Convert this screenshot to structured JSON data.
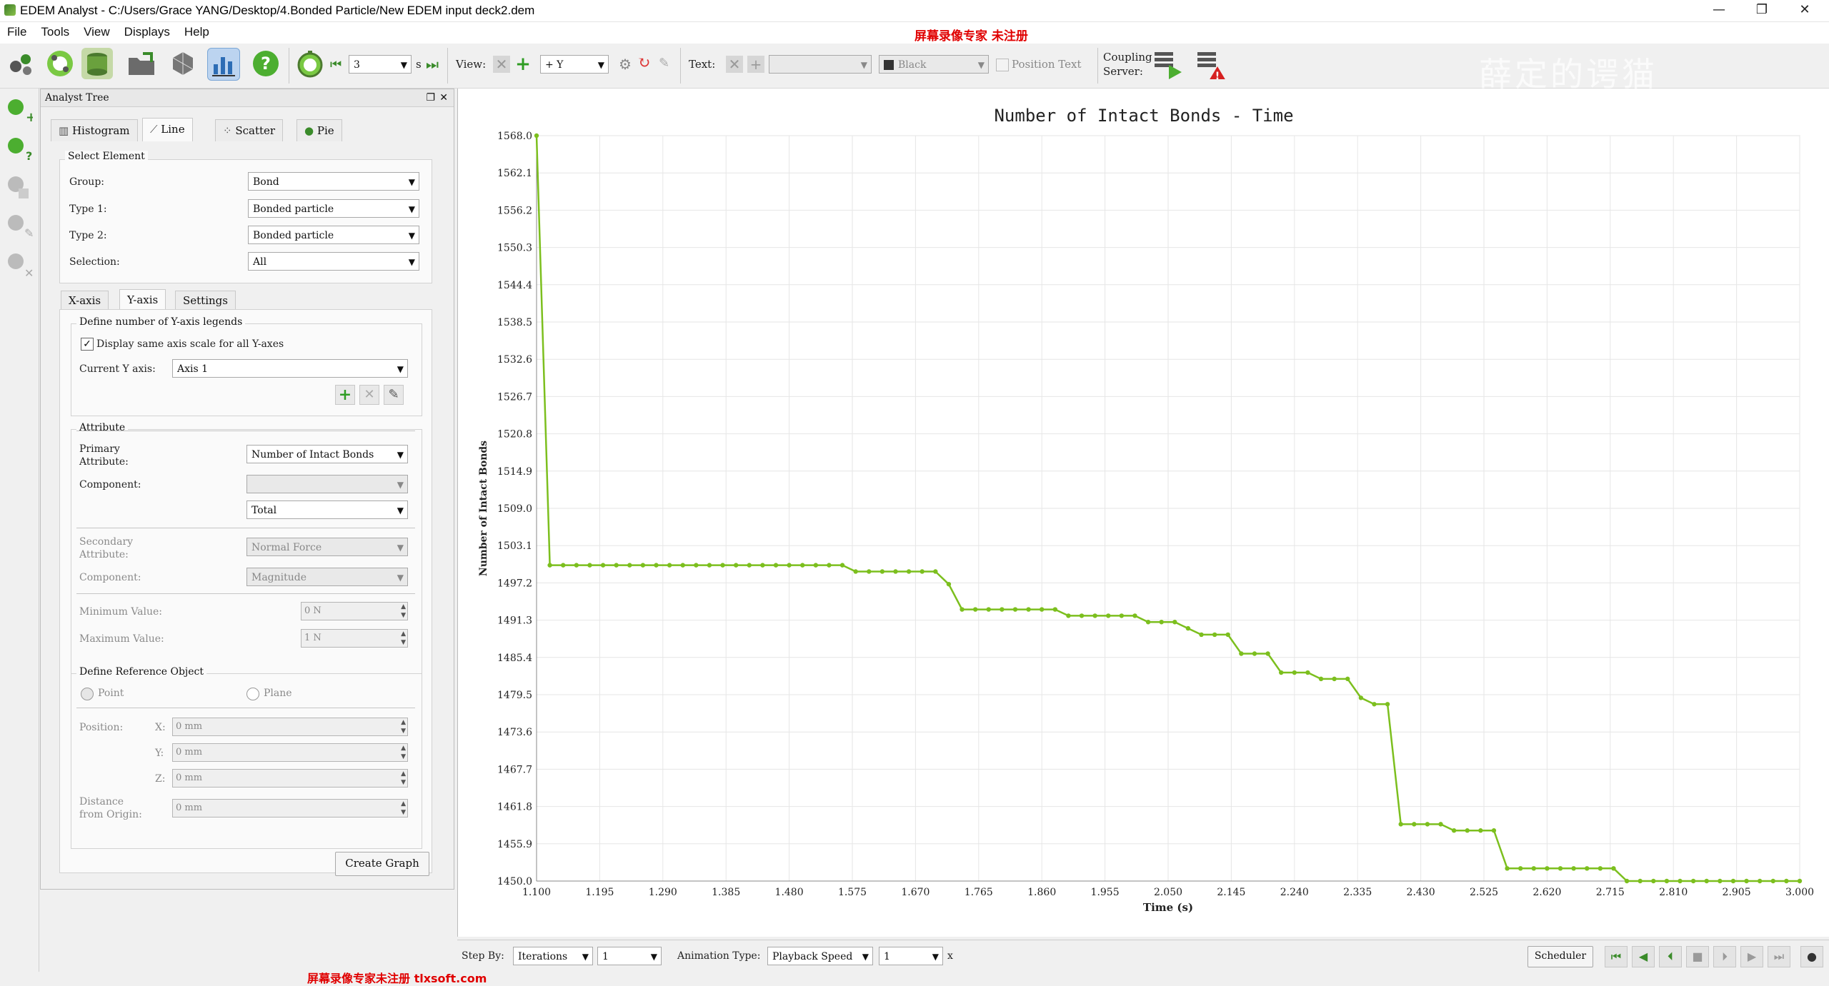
{
  "window": {
    "title": "EDEM Analyst - C:/Users/Grace YANG/Desktop/4.Bonded Particle/New EDEM input deck2.dem",
    "watermark_top": "屏幕录像专家 未注册",
    "watermark_bottom": "屏幕录像专家未注册 tlxsoft.com",
    "watermark_right": "薛定的谔猫",
    "minimize": "—",
    "restore": "❐",
    "close": "✕"
  },
  "menu": [
    "File",
    "Tools",
    "View",
    "Displays",
    "Help"
  ],
  "toolbar": {
    "iterations_value": "3",
    "iterations_unit": "s",
    "view_label": "View:",
    "view_axis": "+ Y",
    "text_label": "Text:",
    "color_value": "Black",
    "position_text_label": "Position Text",
    "coupling_label_1": "Coupling",
    "coupling_label_2": "Server:"
  },
  "panel": {
    "title": "Analyst Tree",
    "tabs": [
      "Histogram",
      "Line",
      "Scatter",
      "Pie"
    ],
    "select_element": {
      "title": "Select Element",
      "group_label": "Group:",
      "group_value": "Bond",
      "type1_label": "Type 1:",
      "type1_value": "Bonded particle",
      "type2_label": "Type 2:",
      "type2_value": "Bonded particle",
      "selection_label": "Selection:",
      "selection_value": "All"
    },
    "subtabs": [
      "X-axis",
      "Y-axis",
      "Settings"
    ],
    "yaxis": {
      "legend_group": "Define number of Y-axis legends",
      "same_scale_label": "Display same axis scale for all Y-axes",
      "current_axis_label": "Current Y axis:",
      "current_axis_value": "Axis 1"
    },
    "attribute": {
      "title": "Attribute",
      "primary_label_1": "Primary",
      "primary_label_2": "Attribute:",
      "primary_value": "Number of Intact Bonds",
      "component_label": "Component:",
      "component_value": "",
      "total_value": "Total",
      "secondary_label_1": "Secondary",
      "secondary_label_2": "Attribute:",
      "secondary_value": "Normal Force",
      "component2_label": "Component:",
      "component2_value": "Magnitude",
      "min_label": "Minimum Value:",
      "min_value": "0 N",
      "max_label": "Maximum Value:",
      "max_value": "1 N"
    },
    "reference": {
      "title": "Define Reference Object",
      "point_label": "Point",
      "plane_label": "Plane",
      "position_label": "Position:",
      "x_label": "X:",
      "y_label": "Y:",
      "z_label": "Z:",
      "x_value": "0 mm",
      "y_value": "0 mm",
      "z_value": "0 mm",
      "distance_label_1": "Distance",
      "distance_label_2": "from Origin:",
      "distance_value": "0 mm"
    },
    "create_graph": "Create Graph"
  },
  "bottom": {
    "step_by_label": "Step By:",
    "step_by_value": "Iterations",
    "step_value": "1",
    "animation_label": "Animation Type:",
    "animation_value": "Playback Speed",
    "speed_value": "1",
    "speed_unit": "x",
    "scheduler": "Scheduler"
  },
  "chart_data": {
    "type": "line",
    "title": "Number of Intact Bonds - Time",
    "xlabel": "Time (s)",
    "ylabel": "Number of Intact Bonds",
    "xlim": [
      1.1,
      3.0
    ],
    "ylim": [
      1450.0,
      1568.0
    ],
    "xticks": [
      "1.100",
      "1.195",
      "1.290",
      "1.385",
      "1.480",
      "1.575",
      "1.670",
      "1.765",
      "1.860",
      "1.955",
      "2.050",
      "2.145",
      "2.240",
      "2.335",
      "2.430",
      "2.525",
      "2.620",
      "2.715",
      "2.810",
      "2.905",
      "3.000"
    ],
    "yticks": [
      "1568.0",
      "1562.1",
      "1556.2",
      "1550.3",
      "1544.4",
      "1538.5",
      "1532.6",
      "1526.7",
      "1520.8",
      "1514.9",
      "1509.0",
      "1503.1",
      "1497.2",
      "1491.3",
      "1485.4",
      "1479.5",
      "1473.6",
      "1467.7",
      "1461.8",
      "1455.9",
      "1450.0"
    ],
    "grid": true,
    "color": "#7cbf1e",
    "series": [
      {
        "x": [
          1.1,
          1.12,
          1.14,
          1.16,
          1.18,
          1.2,
          1.22,
          1.24,
          1.26,
          1.28,
          1.3,
          1.32,
          1.34,
          1.36,
          1.38,
          1.4,
          1.42,
          1.44,
          1.46,
          1.48,
          1.5,
          1.52,
          1.54,
          1.56,
          1.58,
          1.6,
          1.62,
          1.64,
          1.66,
          1.68,
          1.7,
          1.72,
          1.74,
          1.76,
          1.78,
          1.8,
          1.82,
          1.84,
          1.86,
          1.88,
          1.9,
          1.92,
          1.94,
          1.96,
          1.98,
          2.0,
          2.02,
          2.04,
          2.06,
          2.08,
          2.1,
          2.12,
          2.14,
          2.16,
          2.18,
          2.2,
          2.22,
          2.24,
          2.26,
          2.28,
          2.3,
          2.32,
          2.34,
          2.36,
          2.38,
          2.4,
          2.42,
          2.44,
          2.46,
          2.48,
          2.5,
          2.52,
          2.54,
          2.56,
          2.58,
          2.6,
          2.62,
          2.64,
          2.66,
          2.68,
          2.7,
          2.72,
          2.74,
          2.76,
          2.78,
          2.8,
          2.82,
          2.84,
          2.86,
          2.88,
          2.9,
          2.92,
          2.94,
          2.96,
          2.98,
          3.0
        ],
        "values": [
          1568,
          1500,
          1500,
          1500,
          1500,
          1500,
          1500,
          1500,
          1500,
          1500,
          1500,
          1500,
          1500,
          1500,
          1500,
          1500,
          1500,
          1500,
          1500,
          1500,
          1500,
          1500,
          1500,
          1500,
          1499,
          1499,
          1499,
          1499,
          1499,
          1499,
          1499,
          1497,
          1493,
          1493,
          1493,
          1493,
          1493,
          1493,
          1493,
          1493,
          1492,
          1492,
          1492,
          1492,
          1492,
          1492,
          1491,
          1491,
          1491,
          1490,
          1489,
          1489,
          1489,
          1486,
          1486,
          1486,
          1483,
          1483,
          1483,
          1482,
          1482,
          1482,
          1479,
          1478,
          1478,
          1459,
          1459,
          1459,
          1459,
          1458,
          1458,
          1458,
          1458,
          1452,
          1452,
          1452,
          1452,
          1452,
          1452,
          1452,
          1452,
          1452,
          1450,
          1450,
          1450,
          1450,
          1450,
          1450,
          1450,
          1450,
          1450,
          1450,
          1450,
          1450,
          1450,
          1450
        ]
      }
    ]
  }
}
